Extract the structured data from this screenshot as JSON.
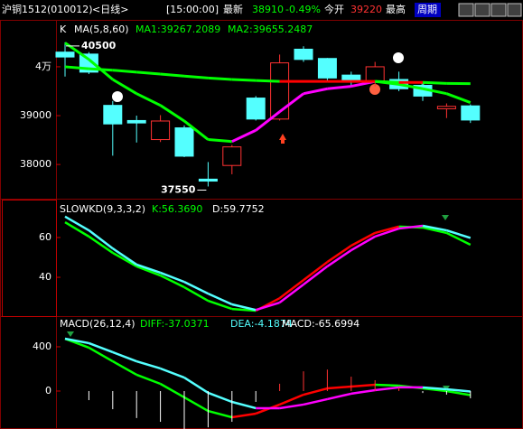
{
  "header": {
    "symbol": "沪铜1512",
    "code": "(010012)",
    "period": "<日线>",
    "time": "[15:00:00]",
    "last_label": "最新",
    "last": "38910",
    "change": "-0.49%",
    "open_label": "今开",
    "open": "39220",
    "high_label": "最高",
    "cycle": "周期"
  },
  "chart_data": [
    {
      "type": "candlestick",
      "name": "K",
      "indicator": "MA(5,8,60)",
      "open": [
        40300,
        40260,
        39210,
        38900,
        38510,
        38750,
        37700,
        37980,
        39360,
        38930,
        40360,
        40170,
        39830,
        39700,
        39740,
        39620,
        39140,
        39200
      ],
      "high": [
        40500,
        40300,
        39300,
        39000,
        39010,
        38800,
        38050,
        38400,
        39400,
        40250,
        40420,
        40180,
        39900,
        40100,
        39900,
        39700,
        39250,
        39230
      ],
      "low": [
        39800,
        39850,
        38180,
        38450,
        38460,
        38150,
        37550,
        37800,
        38900,
        38900,
        40100,
        39700,
        39600,
        39600,
        39500,
        39300,
        38950,
        38850
      ],
      "close": [
        40200,
        39890,
        38830,
        38850,
        38890,
        38170,
        37660,
        38360,
        38930,
        40080,
        40150,
        39770,
        39700,
        40000,
        39550,
        39400,
        39190,
        38910
      ],
      "up_color": "#ff3232",
      "down_color": "#54ffff",
      "series": [
        {
          "name": "MA1:39267.2089",
          "color": "#00ff00",
          "up_color": "#ff00ff",
          "values": [
            40490,
            40150,
            39740,
            39450,
            39210,
            38890,
            38510,
            38470,
            38700,
            39080,
            39450,
            39550,
            39600,
            39700,
            39640,
            39550,
            39450,
            39267.2089
          ]
        },
        {
          "name": "MA2:39655.2487",
          "color": "#00ff00",
          "up_color": "#ff0000",
          "values": [
            40000,
            39960,
            39930,
            39890,
            39850,
            39810,
            39770,
            39740,
            39720,
            39700,
            39700,
            39700,
            39700,
            39700,
            39680,
            39680,
            39660,
            39655.2487
          ]
        }
      ],
      "annotations": [
        "40500",
        "37550"
      ],
      "ylim": [
        37300,
        40960
      ],
      "yticks": [
        {
          "value": 40000,
          "label": "4万"
        },
        39000,
        38000
      ]
    },
    {
      "type": "line",
      "name": "SLOWKD(9,3,3,2)",
      "series": [
        {
          "name": "K:56.3690",
          "color": "#00ff00",
          "up_color": "#ff0000",
          "values": [
            67.7,
            60.5,
            52.3,
            45.5,
            40.9,
            35,
            28.2,
            24.1,
            23.2,
            29.5,
            38.6,
            47.7,
            55.9,
            62.3,
            65.5,
            65,
            62.3,
            56.369
          ]
        },
        {
          "name": "D:59.7752",
          "color": "#54ffff",
          "up_color": "#ff00ff",
          "values": [
            70.5,
            63.6,
            54.5,
            46.4,
            42.3,
            37.7,
            31.8,
            26.4,
            23.6,
            27.3,
            36.4,
            45.5,
            53.6,
            60.5,
            64.5,
            65.9,
            63.6,
            59.7752
          ]
        }
      ],
      "ylim": [
        20.5,
        78.6
      ],
      "yticks": [
        60,
        40
      ]
    },
    {
      "type": "macd",
      "name": "MACD(26,12,4)",
      "series": [
        {
          "name": "DIFF:-37.0371",
          "color": "#00ff00",
          "up_color": "#ff0000",
          "values": [
            473,
            392,
            269,
            147,
            65,
            -57,
            -180,
            -237,
            -204,
            -122,
            -33,
            24,
            41,
            57,
            49,
            24,
            0,
            -37.0371
          ]
        },
        {
          "name": "DEA:-4.1874",
          "color": "#54ffff",
          "up_color": "#ff00ff",
          "values": [
            473,
            433,
            351,
            269,
            204,
            122,
            -16,
            -98,
            -155,
            -155,
            -122,
            -73,
            -24,
            8,
            33,
            33,
            16,
            -4.1874
          ]
        },
        {
          "name": "MACD:-65.6994",
          "color": "#ffffff",
          "up_color": "#ff3232",
          "bars": true,
          "values": [
            0,
            -82,
            -164,
            -244,
            -278,
            -358,
            -328,
            -278,
            -98,
            66,
            178,
            194,
            130,
            98,
            32,
            -18,
            -32,
            -65.6994
          ]
        }
      ],
      "ylim": [
        -343,
        661
      ],
      "yticks": [
        400,
        0
      ]
    }
  ]
}
